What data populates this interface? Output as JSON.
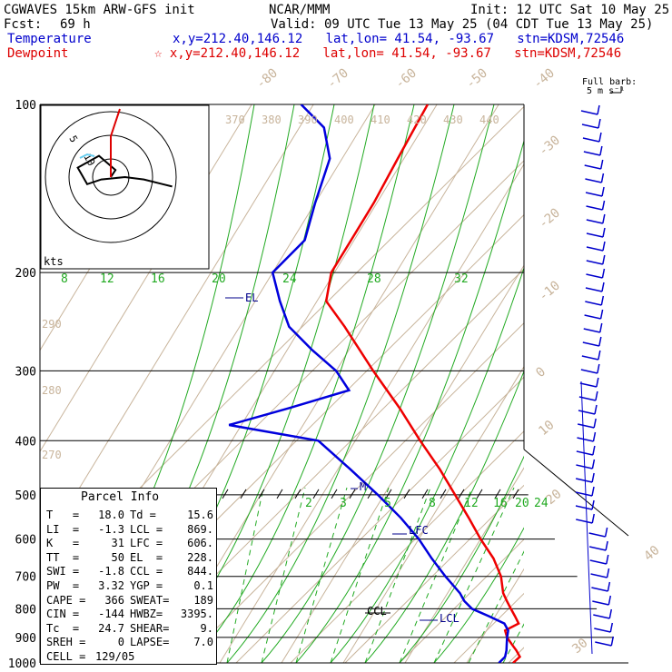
{
  "header": {
    "model": "CGWAVES 15km ARW-GFS init",
    "org": "NCAR/MMM",
    "init": "Init: 12 UTC Sat 10 May 25",
    "fcst_label": "Fcst:",
    "fcst_hours": "69 h",
    "valid": "Valid: 09 UTC Tue 13 May 25 (04 CDT Tue 13 May 25)",
    "temp_label": "Temperature",
    "temp_loc": "x,y=212.40,146.12   lat,lon= 41.54, -93.67   stn=KDSM,72546",
    "dew_label": "Dewpoint",
    "dew_loc": "☆ x,y=212.40,146.12   lat,lon= 41.54, -93.67   stn=KDSM,72546"
  },
  "barb_legend": {
    "line1": "Full barb:",
    "line2": "5 m s⁻¹"
  },
  "hodograph": {
    "unit_label": "kts",
    "ring_labels": [
      "5",
      "10"
    ]
  },
  "parcel_info": {
    "title": "Parcel Info",
    "rows": [
      [
        "T   =",
        "18.0",
        "Td =",
        "15.6"
      ],
      [
        "LI  =",
        "-1.3",
        "LCL =",
        "869."
      ],
      [
        "K   =",
        "31",
        "LFC =",
        "606."
      ],
      [
        "TT  =",
        "50",
        "EL  =",
        "228."
      ],
      [
        "SWI =",
        "-1.8",
        "CCL =",
        "844."
      ],
      [
        "PW  =",
        "3.32",
        "YGP =",
        "0.1"
      ],
      [
        "CAPE =",
        "366",
        "SWEAT=",
        "189"
      ],
      [
        "CIN =",
        "-144",
        "HWBZ=",
        "3395."
      ],
      [
        "Tc  =",
        "24.7",
        "SHEAR=",
        "9."
      ],
      [
        "SREH =",
        "0",
        "LAPSE=",
        "7.0"
      ],
      [
        "CELL =",
        "129/05",
        "",
        ""
      ]
    ]
  },
  "colors": {
    "temperature": "#0000dd",
    "dewpoint": "#ee0000",
    "isotherm": "#c8b49b",
    "mixing_ratio": "#22aa22",
    "barbs": "#0000cc"
  },
  "chart_data": {
    "type": "line",
    "pressure_levels": [
      100,
      200,
      300,
      400,
      500,
      600,
      700,
      800,
      900,
      1000
    ],
    "isotherm_labels": [
      "-80",
      "-70",
      "-60",
      "-50",
      "-40",
      "-30",
      "-20",
      "-10",
      "0",
      "10",
      "20",
      "30",
      "40"
    ],
    "theta_e_labels": [
      "370",
      "380",
      "390",
      "400",
      "410",
      "420",
      "430",
      "440"
    ],
    "theta_labels": [
      "290",
      "280",
      "270"
    ],
    "mixing_ratio_top_labels": [
      "8",
      "12",
      "16",
      "20",
      "24",
      "28",
      "32"
    ],
    "mixing_ratio_bottom_labels": [
      "2",
      "3",
      "5",
      "8",
      "12",
      "16",
      "20",
      "24"
    ],
    "annotations": [
      "EL",
      "LFC",
      "CCL",
      "LCL",
      "M"
    ],
    "series": [
      {
        "pressure": [
          1000,
          975,
          950,
          925,
          900,
          875,
          850,
          825,
          800,
          775,
          750,
          700,
          650,
          600,
          550,
          500,
          450,
          400,
          350,
          300,
          250,
          225,
          200,
          175,
          150,
          125,
          100
        ],
        "temp_c": [
          17.5,
          18.0,
          16.8,
          15.4,
          14.0,
          13.0,
          14.5,
          13.2,
          11.8,
          10.4,
          9.0,
          7.0,
          4.0,
          0.0,
          -4.0,
          -8.5,
          -13.5,
          -19.5,
          -26.0,
          -34.0,
          -43.0,
          -48.5,
          -50.5,
          -50.5,
          -50.5,
          -51.0,
          -51.5
        ]
      },
      {
        "pressure": [
          1000,
          975,
          950,
          925,
          900,
          875,
          850,
          825,
          800,
          775,
          750,
          700,
          650,
          600,
          550,
          500,
          450,
          400,
          375,
          350,
          325,
          300,
          275,
          250,
          225,
          200,
          175,
          150,
          125,
          110,
          100
        ],
        "temp_c": [
          15.2,
          15.6,
          15.2,
          14.6,
          14.0,
          13.5,
          12.2,
          9.0,
          5.5,
          3.5,
          2.0,
          -2.0,
          -6.0,
          -10.0,
          -15.0,
          -21.0,
          -28.0,
          -36.0,
          -52.0,
          -44.0,
          -36.0,
          -40.0,
          -46.0,
          -52.0,
          -56.0,
          -60.0,
          -58.0,
          -60.0,
          -62.0,
          -66.0,
          -72.0
        ]
      }
    ],
    "hodograph": {
      "u_kts": [
        0,
        2,
        -5,
        -14,
        -10,
        -4,
        6,
        14,
        22,
        26
      ],
      "v_kts": [
        0,
        -3,
        -9,
        -4,
        3,
        1,
        0,
        1,
        3,
        4
      ]
    }
  }
}
